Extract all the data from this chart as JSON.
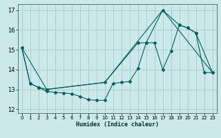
{
  "xlabel": "Humidex (Indice chaleur)",
  "bg_color": "#cce8e8",
  "grid_color": "#aad0d0",
  "line_color": "#006060",
  "xlim": [
    -0.5,
    23.5
  ],
  "ylim": [
    11.8,
    17.3
  ],
  "xticks": [
    0,
    1,
    2,
    3,
    4,
    5,
    6,
    7,
    8,
    9,
    10,
    11,
    12,
    13,
    14,
    15,
    16,
    17,
    18,
    19,
    20,
    21,
    22,
    23
  ],
  "yticks": [
    12,
    13,
    14,
    15,
    16,
    17
  ],
  "line1_x": [
    0,
    1,
    2,
    3,
    4,
    5,
    6,
    7,
    8,
    9,
    10,
    11,
    12,
    13,
    14,
    15,
    16,
    17,
    18,
    19,
    20,
    21,
    22,
    23
  ],
  "line1_y": [
    15.1,
    13.3,
    13.1,
    12.9,
    12.85,
    12.82,
    12.78,
    12.65,
    12.48,
    12.45,
    12.45,
    13.3,
    13.35,
    13.4,
    14.05,
    15.35,
    15.35,
    14.0,
    14.95,
    16.25,
    16.1,
    15.85,
    13.85,
    13.85
  ],
  "line2_x": [
    0,
    1,
    2,
    3,
    10,
    14,
    15,
    17,
    19,
    20,
    21,
    23
  ],
  "line2_y": [
    15.1,
    13.3,
    13.1,
    13.0,
    13.35,
    15.35,
    15.35,
    17.0,
    16.25,
    16.1,
    15.85,
    13.85
  ],
  "line3_x": [
    0,
    3,
    10,
    17,
    23
  ],
  "line3_y": [
    15.1,
    13.0,
    13.35,
    17.0,
    13.85
  ]
}
